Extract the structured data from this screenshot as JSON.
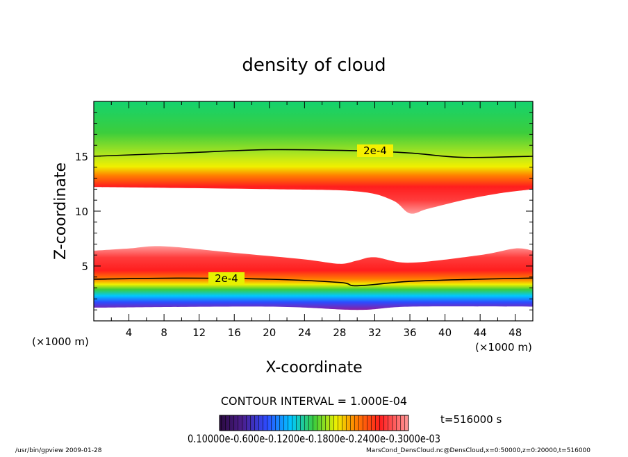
{
  "chart_data": {
    "type": "heatmap",
    "title": "density of cloud",
    "xlabel": "X-coordinate",
    "ylabel": "Z-coordinate",
    "x_unit": "(×1000 m)",
    "xlim": [
      0,
      50
    ],
    "ylim": [
      0,
      20
    ],
    "x_ticks": [
      4,
      8,
      12,
      16,
      20,
      24,
      28,
      32,
      36,
      40,
      44,
      48
    ],
    "y_ticks": [
      5,
      10,
      15
    ],
    "contour_interval_text": "CONTOUR INTERVAL = 1.000E-04",
    "contour_labels": [
      "2e-4",
      "2e-4"
    ],
    "time_text": "t=516000 s",
    "colorbar_labels_text": "0.10000e-0.600e-0.1200e-0.1800e-0.2400e-0.3000e-03",
    "colors": {
      "green": "#3ccd3c",
      "yellow": "#f0f000",
      "orange": "#ff8000",
      "red": "#ff1e1e",
      "pink": "#ff9a9a",
      "purple": "#8c1ea0",
      "blue": "#2d4bff",
      "cyan": "#00c8ff"
    },
    "upper_layer": {
      "contour_2e4_z": [
        [
          0,
          15.0
        ],
        [
          10,
          15.3
        ],
        [
          20,
          15.6
        ],
        [
          30,
          15.5
        ],
        [
          36,
          15.3
        ],
        [
          42,
          14.9
        ],
        [
          50,
          15.0
        ]
      ],
      "lower_edge_z": [
        [
          0,
          12.2
        ],
        [
          20,
          12.0
        ],
        [
          30,
          11.8
        ],
        [
          34,
          11.0
        ],
        [
          36,
          9.8
        ],
        [
          38,
          10.2
        ],
        [
          42,
          11.0
        ],
        [
          46,
          11.6
        ],
        [
          50,
          12.0
        ]
      ]
    },
    "lower_layer": {
      "upper_edge_z": [
        [
          0,
          6.4
        ],
        [
          4,
          6.6
        ],
        [
          8,
          6.8
        ],
        [
          16,
          6.2
        ],
        [
          24,
          5.6
        ],
        [
          28,
          5.2
        ],
        [
          30,
          5.5
        ],
        [
          32,
          5.8
        ],
        [
          36,
          5.3
        ],
        [
          44,
          6.0
        ],
        [
          48,
          6.6
        ],
        [
          50,
          6.4
        ]
      ],
      "contour_2e4_z": [
        [
          0,
          3.8
        ],
        [
          10,
          3.9
        ],
        [
          20,
          3.8
        ],
        [
          28,
          3.5
        ],
        [
          30,
          3.2
        ],
        [
          36,
          3.6
        ],
        [
          44,
          3.8
        ],
        [
          50,
          3.9
        ]
      ],
      "bottom_z": [
        [
          0,
          1.2
        ],
        [
          20,
          1.3
        ],
        [
          30,
          1.0
        ],
        [
          36,
          1.3
        ],
        [
          50,
          1.3
        ]
      ]
    }
  },
  "footer": {
    "left": "/usr/bin/gpview   2009-01-28",
    "right": "MarsCond_DensCloud.nc@DensCloud,x=0:50000,z=0:20000,t=516000"
  }
}
